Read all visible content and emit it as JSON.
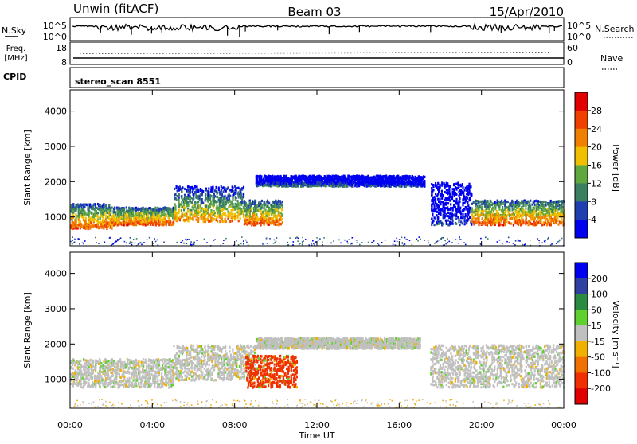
{
  "header": {
    "station": "Unwin (fitACF)",
    "beam": "Beam 03",
    "date": "15/Apr/2010"
  },
  "top_panels": {
    "nsky_label": "N.Sky",
    "nsky_ticks": [
      "10^5",
      "10^0"
    ],
    "nsearch_label": "N.Search",
    "freq_label_1": "Freq.",
    "freq_label_2": "[MHz]",
    "freq_ticks": [
      "18",
      "8"
    ],
    "nave_label": "Nave",
    "nave_ticks": [
      "60",
      "0"
    ],
    "cpid_label": "CPID",
    "cpid_value": "stereo_scan 8551"
  },
  "chart_data": [
    {
      "type": "heatmap",
      "panel": "power",
      "ylabel": "Slant Range [km]",
      "y_ticks": [
        "1000",
        "2000",
        "3000",
        "4000"
      ],
      "ylim": [
        180,
        4600
      ],
      "colorbar_label": "Power [dB]",
      "colorbar_ticks": [
        "4",
        "8",
        "12",
        "16",
        "20",
        "24",
        "28"
      ],
      "colors": [
        "#0000f0",
        "#1f3fb0",
        "#3a8060",
        "#5fa840",
        "#f0c000",
        "#f08000",
        "#f04000",
        "#e00000"
      ],
      "bands": [
        {
          "t": [
            0.0,
            2.0
          ],
          "range": [
            700,
            1400
          ],
          "level": 6
        },
        {
          "t": [
            2.0,
            5.0
          ],
          "range": [
            800,
            1300
          ],
          "level": 6
        },
        {
          "t": [
            5.0,
            8.4
          ],
          "range": [
            900,
            1900
          ],
          "level": 5
        },
        {
          "t": [
            8.4,
            10.3
          ],
          "range": [
            800,
            1500
          ],
          "level": 6
        },
        {
          "t": [
            9.0,
            13.5
          ],
          "range": [
            1900,
            2200
          ],
          "level": 2
        },
        {
          "t": [
            13.5,
            17.2
          ],
          "range": [
            1900,
            2200
          ],
          "level": 1
        },
        {
          "t": [
            17.5,
            19.5
          ],
          "range": [
            800,
            2000
          ],
          "level": 1
        },
        {
          "t": [
            19.5,
            24.0
          ],
          "range": [
            800,
            1500
          ],
          "level": 6
        }
      ]
    },
    {
      "type": "heatmap",
      "panel": "velocity",
      "ylabel": "Slant Range [km]",
      "y_ticks": [
        "1000",
        "2000",
        "3000",
        "4000"
      ],
      "ylim": [
        180,
        4600
      ],
      "xlabel": "Time UT",
      "x_ticks": [
        "00:00",
        "04:00",
        "08:00",
        "12:00",
        "16:00",
        "20:00",
        "00:00"
      ],
      "xlim": [
        0,
        24
      ],
      "colorbar_label": "Velocity [m s⁻¹]",
      "colorbar_ticks": [
        "200",
        "100",
        "50",
        "15",
        "-15",
        "-50",
        "-100",
        "-200"
      ],
      "colors": [
        "#0000f0",
        "#3040a0",
        "#2a8a40",
        "#60d030",
        "#c0c0c0",
        "#f0b000",
        "#f07000",
        "#f03000",
        "#e00000"
      ],
      "bands": [
        {
          "t": [
            0.0,
            5.0
          ],
          "range": [
            800,
            1600
          ],
          "level": 4
        },
        {
          "t": [
            5.0,
            9.0
          ],
          "range": [
            1000,
            2000
          ],
          "level": 4
        },
        {
          "t": [
            8.5,
            11.0
          ],
          "range": [
            800,
            1700
          ],
          "level": 7
        },
        {
          "t": [
            9.0,
            17.0
          ],
          "range": [
            1900,
            2200
          ],
          "level": 4
        },
        {
          "t": [
            17.5,
            24.0
          ],
          "range": [
            800,
            2000
          ],
          "level": 4
        }
      ]
    }
  ]
}
